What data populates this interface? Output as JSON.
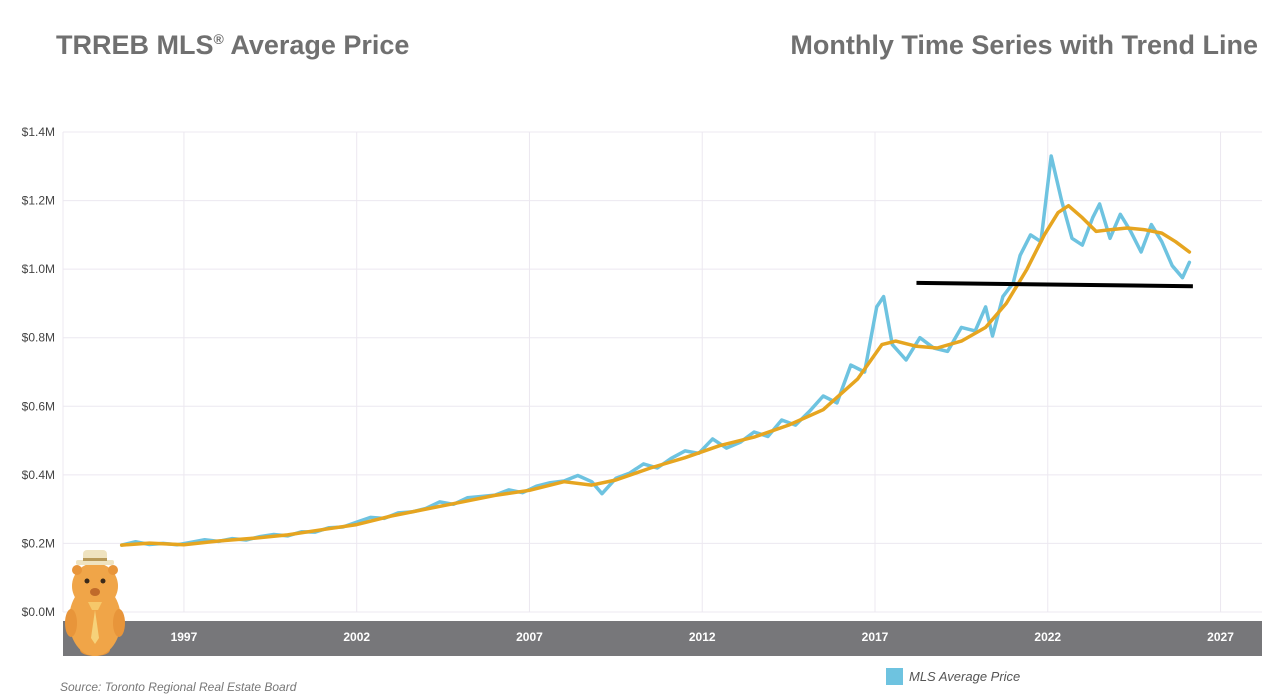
{
  "header": {
    "title_left": "TRREB MLS",
    "title_left_mark": "®",
    "title_left_suffix": " Average Price",
    "title_right": "Monthly Time Series with Trend Line"
  },
  "source_text": "Source: Toronto Regional Real Estate Board",
  "colors": {
    "series": "#6ec3e0",
    "trend": "#e6a520",
    "threshold": "#000000",
    "axis_band": "#77777a",
    "grid": "#ece8f0"
  },
  "mascot": {
    "icon": "groundhog-mascot-icon"
  },
  "chart_data": {
    "type": "line",
    "title": "TRREB MLS® Average Price",
    "subtitle": "Monthly Time Series with Trend Line",
    "xlabel": "",
    "ylabel": "",
    "xlim": [
      1993.5,
      2028.2
    ],
    "ylim": [
      0,
      1400000
    ],
    "grid": true,
    "legend_position": "bottom-right",
    "y_ticks": [
      {
        "value": 0,
        "label": "$0.0M"
      },
      {
        "value": 200000,
        "label": "$0.2M"
      },
      {
        "value": 400000,
        "label": "$0.4M"
      },
      {
        "value": 600000,
        "label": "$0.6M"
      },
      {
        "value": 800000,
        "label": "$0.8M"
      },
      {
        "value": 1000000,
        "label": "$1.0M"
      },
      {
        "value": 1200000,
        "label": "$1.2M"
      },
      {
        "value": 1400000,
        "label": "$1.4M"
      }
    ],
    "x_ticks": [
      {
        "value": 1997,
        "label": "1997"
      },
      {
        "value": 2002,
        "label": "2002"
      },
      {
        "value": 2007,
        "label": "2007"
      },
      {
        "value": 2012,
        "label": "2012"
      },
      {
        "value": 2017,
        "label": "2017"
      },
      {
        "value": 2022,
        "label": "2022"
      },
      {
        "value": 2027,
        "label": "2027"
      }
    ],
    "series": [
      {
        "name": "MLS Average Price",
        "points": [
          [
            1995.2,
            195000
          ],
          [
            1995.6,
            205000
          ],
          [
            1996.0,
            197000
          ],
          [
            1996.4,
            200000
          ],
          [
            1996.8,
            196000
          ],
          [
            1997.2,
            203000
          ],
          [
            1997.6,
            211000
          ],
          [
            1998.0,
            206000
          ],
          [
            1998.4,
            214000
          ],
          [
            1998.8,
            210000
          ],
          [
            1999.2,
            220000
          ],
          [
            1999.6,
            226000
          ],
          [
            2000.0,
            222000
          ],
          [
            2000.4,
            234000
          ],
          [
            2000.8,
            233000
          ],
          [
            2001.2,
            246000
          ],
          [
            2001.6,
            248000
          ],
          [
            2002.0,
            262000
          ],
          [
            2002.4,
            276000
          ],
          [
            2002.8,
            273000
          ],
          [
            2003.2,
            289000
          ],
          [
            2003.6,
            292000
          ],
          [
            2004.0,
            302000
          ],
          [
            2004.4,
            321000
          ],
          [
            2004.8,
            314000
          ],
          [
            2005.2,
            333000
          ],
          [
            2005.6,
            337000
          ],
          [
            2006.0,
            341000
          ],
          [
            2006.4,
            356000
          ],
          [
            2006.8,
            348000
          ],
          [
            2007.2,
            367000
          ],
          [
            2007.6,
            377000
          ],
          [
            2008.0,
            382000
          ],
          [
            2008.4,
            398000
          ],
          [
            2008.8,
            380000
          ],
          [
            2009.1,
            345000
          ],
          [
            2009.5,
            390000
          ],
          [
            2009.9,
            405000
          ],
          [
            2010.3,
            432000
          ],
          [
            2010.7,
            420000
          ],
          [
            2011.1,
            448000
          ],
          [
            2011.5,
            470000
          ],
          [
            2011.9,
            463000
          ],
          [
            2012.3,
            505000
          ],
          [
            2012.7,
            478000
          ],
          [
            2013.1,
            495000
          ],
          [
            2013.5,
            525000
          ],
          [
            2013.9,
            512000
          ],
          [
            2014.3,
            560000
          ],
          [
            2014.7,
            545000
          ],
          [
            2015.1,
            585000
          ],
          [
            2015.5,
            630000
          ],
          [
            2015.9,
            610000
          ],
          [
            2016.3,
            720000
          ],
          [
            2016.7,
            700000
          ],
          [
            2017.05,
            890000
          ],
          [
            2017.25,
            920000
          ],
          [
            2017.5,
            780000
          ],
          [
            2017.9,
            735000
          ],
          [
            2018.3,
            800000
          ],
          [
            2018.7,
            770000
          ],
          [
            2019.1,
            760000
          ],
          [
            2019.5,
            830000
          ],
          [
            2019.9,
            820000
          ],
          [
            2020.2,
            890000
          ],
          [
            2020.4,
            805000
          ],
          [
            2020.7,
            920000
          ],
          [
            2021.0,
            960000
          ],
          [
            2021.2,
            1040000
          ],
          [
            2021.5,
            1100000
          ],
          [
            2021.8,
            1080000
          ],
          [
            2022.1,
            1330000
          ],
          [
            2022.4,
            1200000
          ],
          [
            2022.7,
            1090000
          ],
          [
            2023.0,
            1070000
          ],
          [
            2023.3,
            1150000
          ],
          [
            2023.5,
            1190000
          ],
          [
            2023.8,
            1090000
          ],
          [
            2024.1,
            1160000
          ],
          [
            2024.4,
            1110000
          ],
          [
            2024.7,
            1050000
          ],
          [
            2025.0,
            1130000
          ],
          [
            2025.3,
            1080000
          ],
          [
            2025.6,
            1010000
          ],
          [
            2025.9,
            975000
          ],
          [
            2026.1,
            1020000
          ]
        ]
      },
      {
        "name": "Trend",
        "points": [
          [
            1995.2,
            195000
          ],
          [
            1996.0,
            201000
          ],
          [
            1997.0,
            196000
          ],
          [
            1998.0,
            207000
          ],
          [
            1999.0,
            215000
          ],
          [
            2000.0,
            225000
          ],
          [
            2001.0,
            240000
          ],
          [
            2002.0,
            255000
          ],
          [
            2003.0,
            280000
          ],
          [
            2004.0,
            300000
          ],
          [
            2005.0,
            320000
          ],
          [
            2006.0,
            340000
          ],
          [
            2007.0,
            355000
          ],
          [
            2008.0,
            380000
          ],
          [
            2008.8,
            370000
          ],
          [
            2009.5,
            385000
          ],
          [
            2010.5,
            420000
          ],
          [
            2011.5,
            450000
          ],
          [
            2012.5,
            485000
          ],
          [
            2013.5,
            510000
          ],
          [
            2014.5,
            545000
          ],
          [
            2015.5,
            590000
          ],
          [
            2016.5,
            680000
          ],
          [
            2017.2,
            780000
          ],
          [
            2017.6,
            790000
          ],
          [
            2018.2,
            775000
          ],
          [
            2018.8,
            770000
          ],
          [
            2019.5,
            790000
          ],
          [
            2020.2,
            830000
          ],
          [
            2020.8,
            900000
          ],
          [
            2021.4,
            1000000
          ],
          [
            2021.9,
            1100000
          ],
          [
            2022.3,
            1165000
          ],
          [
            2022.6,
            1185000
          ],
          [
            2023.0,
            1150000
          ],
          [
            2023.4,
            1110000
          ],
          [
            2023.8,
            1115000
          ],
          [
            2024.3,
            1120000
          ],
          [
            2024.8,
            1115000
          ],
          [
            2025.3,
            1105000
          ],
          [
            2025.7,
            1080000
          ],
          [
            2026.1,
            1050000
          ]
        ]
      }
    ],
    "threshold_line": {
      "from": [
        2018.2,
        960000
      ],
      "to": [
        2026.2,
        950000
      ]
    },
    "legend": [
      {
        "label": "MLS Average Price"
      }
    ]
  }
}
